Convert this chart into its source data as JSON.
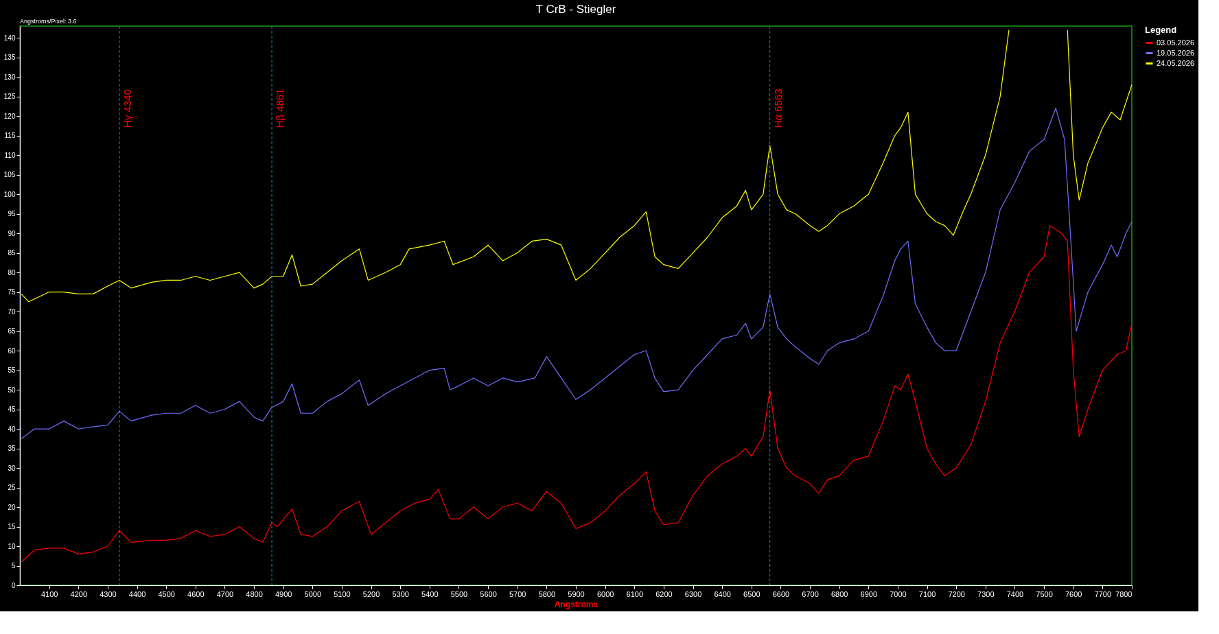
{
  "chart_data": {
    "type": "line",
    "title": "T CrB - Stiegler",
    "xlabel": "Angstroms",
    "legend_title": "Legend",
    "legend": "top right",
    "grid": false,
    "marker": "none",
    "line_style": "solid",
    "annotations": [
      "Angstroms/Pixel: 3.6"
    ],
    "xlim": [
      4000,
      7800
    ],
    "ylim": [
      0,
      143
    ],
    "xticks": [
      4100,
      4200,
      4300,
      4400,
      4500,
      4600,
      4700,
      4800,
      4900,
      5000,
      5100,
      5200,
      5300,
      5400,
      5500,
      5600,
      5700,
      5800,
      5900,
      6000,
      6100,
      6200,
      6300,
      6400,
      6500,
      6600,
      6700,
      6800,
      6900,
      7000,
      7100,
      7200,
      7300,
      7400,
      7500,
      7600,
      7700,
      7800
    ],
    "yticks": [
      0,
      5,
      10,
      15,
      20,
      25,
      30,
      35,
      40,
      45,
      50,
      55,
      60,
      65,
      70,
      75,
      80,
      85,
      90,
      95,
      100,
      105,
      110,
      115,
      120,
      125,
      130,
      135,
      140
    ],
    "ref_lines": [
      {
        "axis": "x",
        "value": 4340,
        "label": "Hγ 4340",
        "color": "#1e8fb0",
        "line_style": "dashed"
      },
      {
        "axis": "x",
        "value": 4861,
        "label": "Hβ 4861",
        "color": "#1e8fb0",
        "line_style": "dashed"
      },
      {
        "axis": "x",
        "value": 6563,
        "label": "Hα 6563",
        "color": "#1e8fb0",
        "line_style": "dashed"
      }
    ],
    "series": [
      {
        "name": "03.05.2026",
        "color": "#ff0000",
        "x": [
          4005,
          4050,
          4100,
          4150,
          4200,
          4250,
          4300,
          4340,
          4380,
          4450,
          4500,
          4550,
          4600,
          4650,
          4700,
          4750,
          4800,
          4830,
          4861,
          4880,
          4930,
          4960,
          5000,
          5050,
          5100,
          5160,
          5200,
          5250,
          5300,
          5350,
          5400,
          5430,
          5470,
          5500,
          5550,
          5600,
          5650,
          5700,
          5750,
          5800,
          5850,
          5900,
          5950,
          6000,
          6050,
          6100,
          6140,
          6170,
          6200,
          6250,
          6300,
          6350,
          6400,
          6450,
          6480,
          6500,
          6540,
          6563,
          6590,
          6620,
          6650,
          6700,
          6730,
          6760,
          6800,
          6850,
          6900,
          6950,
          6990,
          7010,
          7035,
          7060,
          7100,
          7130,
          7160,
          7200,
          7250,
          7300,
          7350,
          7400,
          7450,
          7500,
          7520,
          7560,
          7580,
          7600,
          7620,
          7650,
          7700,
          7750,
          7780,
          7800
        ],
        "values": [
          6,
          9,
          9.5,
          9.5,
          8,
          8.5,
          10,
          14,
          11,
          11.5,
          11.5,
          12,
          14,
          12.5,
          13,
          15,
          12,
          11,
          16,
          15,
          19.5,
          13,
          12.5,
          15,
          19,
          21.5,
          13,
          16,
          19,
          21,
          22,
          24.5,
          17,
          17,
          20,
          17,
          20,
          21,
          19,
          24,
          21,
          14.5,
          16,
          19,
          23,
          26,
          29,
          19,
          15.5,
          16,
          23,
          28,
          31,
          33,
          35,
          33,
          38,
          50,
          35,
          30,
          28,
          26,
          23.5,
          27,
          28,
          32,
          33,
          42,
          51,
          50,
          54,
          47,
          35,
          31,
          28,
          30,
          36,
          47,
          62,
          70,
          80,
          84,
          92,
          90,
          88,
          55,
          38,
          45,
          55,
          59,
          60,
          67
        ]
      },
      {
        "name": "19.05.2026",
        "color": "#7070ff",
        "x": [
          4005,
          4050,
          4100,
          4150,
          4200,
          4250,
          4300,
          4340,
          4380,
          4450,
          4500,
          4550,
          4600,
          4650,
          4700,
          4750,
          4800,
          4830,
          4861,
          4900,
          4930,
          4960,
          5000,
          5050,
          5100,
          5160,
          5190,
          5250,
          5300,
          5350,
          5400,
          5450,
          5470,
          5500,
          5550,
          5600,
          5650,
          5700,
          5760,
          5800,
          5850,
          5900,
          5950,
          6000,
          6050,
          6100,
          6140,
          6170,
          6200,
          6250,
          6300,
          6350,
          6400,
          6450,
          6480,
          6500,
          6540,
          6563,
          6590,
          6620,
          6650,
          6700,
          6730,
          6760,
          6800,
          6850,
          6900,
          6950,
          6990,
          7010,
          7035,
          7060,
          7100,
          7130,
          7160,
          7200,
          7250,
          7300,
          7350,
          7400,
          7450,
          7500,
          7540,
          7570,
          7590,
          7610,
          7650,
          7700,
          7730,
          7750,
          7780,
          7800
        ],
        "values": [
          37.5,
          40,
          40,
          42,
          40,
          40.5,
          41,
          44.5,
          42,
          43.5,
          44,
          44,
          46,
          44,
          45,
          47,
          43,
          42,
          45.5,
          47,
          51.5,
          44,
          44,
          47,
          49,
          52.5,
          46,
          49,
          51,
          53,
          55,
          55.5,
          50,
          51,
          53,
          51,
          53,
          52,
          53,
          58.5,
          53,
          47.5,
          50,
          53,
          56,
          59,
          60,
          53,
          49.5,
          50,
          55,
          59,
          63,
          64,
          67,
          63,
          66,
          74.5,
          66,
          63,
          61,
          58,
          56.5,
          60,
          62,
          63,
          65,
          74,
          83,
          86,
          88,
          72,
          66,
          62,
          60,
          60,
          70,
          80,
          96,
          103,
          111,
          114,
          122,
          114,
          90,
          65,
          75,
          82,
          87,
          84,
          90,
          93
        ]
      },
      {
        "name": "24.05.2026",
        "color": "#ffff00",
        "x": [
          4005,
          4030,
          4100,
          4150,
          4200,
          4250,
          4300,
          4340,
          4380,
          4450,
          4500,
          4550,
          4600,
          4650,
          4700,
          4750,
          4800,
          4830,
          4861,
          4900,
          4930,
          4960,
          5000,
          5050,
          5100,
          5160,
          5190,
          5250,
          5300,
          5330,
          5400,
          5450,
          5480,
          5550,
          5600,
          5650,
          5700,
          5750,
          5800,
          5850,
          5900,
          5950,
          6000,
          6050,
          6100,
          6140,
          6170,
          6200,
          6250,
          6300,
          6350,
          6400,
          6450,
          6480,
          6500,
          6540,
          6563,
          6590,
          6620,
          6650,
          6700,
          6730,
          6760,
          6800,
          6850,
          6900,
          6950,
          6990,
          7010,
          7035,
          7060,
          7100,
          7130,
          7160,
          7190,
          7220,
          7250,
          7300,
          7350,
          7380,
          7400,
          7570,
          7580,
          7600,
          7620,
          7650,
          7700,
          7730,
          7760,
          7800
        ],
        "values": [
          74.5,
          72.5,
          75,
          75,
          74.5,
          74.5,
          76.5,
          78,
          76,
          77.5,
          78,
          78,
          79,
          78,
          79,
          80,
          76,
          77,
          79,
          79,
          84.5,
          76.5,
          77,
          80,
          83,
          86,
          78,
          80,
          82,
          86,
          87,
          88,
          82,
          84,
          87,
          83,
          85,
          88,
          88.5,
          87,
          78,
          81,
          85,
          89,
          92,
          95.5,
          84,
          82,
          81,
          85,
          89,
          94,
          97,
          101,
          96,
          100,
          112.5,
          100,
          96,
          95,
          92,
          90.5,
          92,
          95,
          97,
          100,
          108,
          115,
          117,
          121,
          100,
          95,
          93,
          92,
          89.5,
          95,
          100,
          110,
          125,
          142,
          null,
          null,
          142,
          110,
          98.5,
          108,
          117,
          121,
          119,
          128
        ]
      }
    ]
  }
}
